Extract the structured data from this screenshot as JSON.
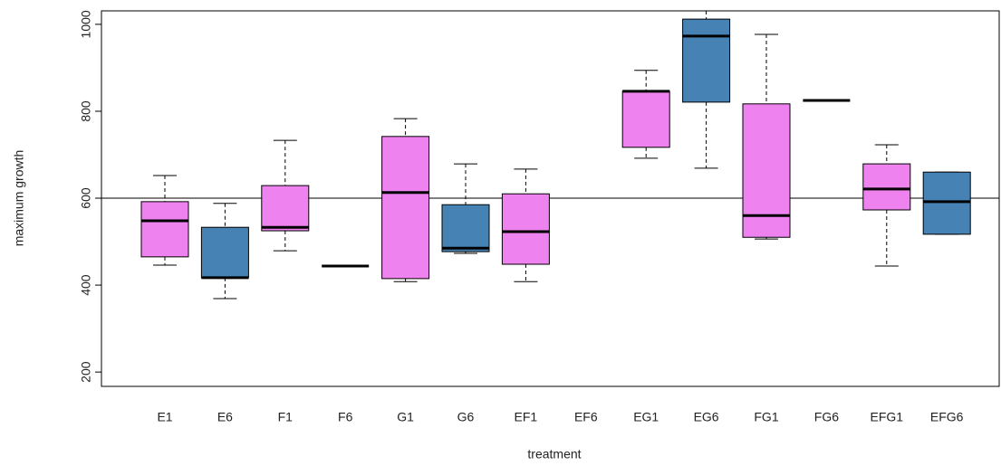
{
  "chart_data": {
    "type": "boxplot",
    "xlabel": "treatment",
    "ylabel": "maximum growth",
    "categories": [
      "E1",
      "E6",
      "F1",
      "F6",
      "G1",
      "G6",
      "EF1",
      "EF6",
      "EG1",
      "EG6",
      "FG1",
      "FG6",
      "EFG1",
      "EFG6"
    ],
    "whisker_low": [
      446,
      369,
      479,
      444,
      408,
      473,
      408,
      null,
      692,
      669,
      506,
      825,
      444,
      517
    ],
    "q1": [
      465,
      417,
      525,
      444,
      415,
      477,
      448,
      null,
      717,
      821,
      510,
      825,
      573,
      517
    ],
    "median": [
      548,
      417,
      533,
      444,
      613,
      485,
      523,
      null,
      846,
      973,
      560,
      825,
      621,
      592
    ],
    "q3": [
      592,
      533,
      629,
      444,
      742,
      585,
      610,
      null,
      846,
      1012,
      817,
      825,
      679,
      660
    ],
    "whisker_high": [
      652,
      588,
      733,
      444,
      783,
      679,
      667,
      null,
      894,
      1031,
      977,
      825,
      723,
      660
    ],
    "colors": [
      "#ee82ee",
      "#4682b4",
      "#ee82ee",
      "#ee82ee",
      "#ee82ee",
      "#4682b4",
      "#ee82ee",
      "#ee82ee",
      "#ee82ee",
      "#4682b4",
      "#ee82ee",
      "#4682b4",
      "#ee82ee",
      "#4682b4"
    ],
    "reference_line": 600,
    "ylim": [
      167,
      1031
    ],
    "yticks": [
      200,
      400,
      600,
      800,
      1000
    ]
  }
}
